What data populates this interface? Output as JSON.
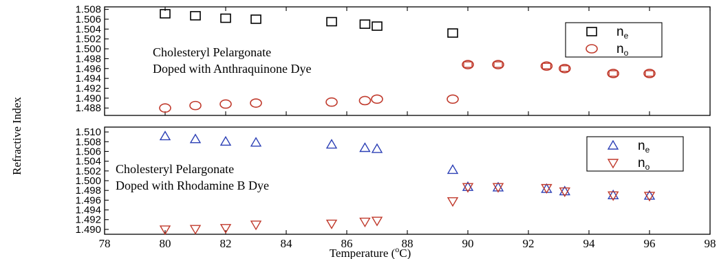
{
  "chart_data": {
    "type": "scatter",
    "xlabel_text": "Temperature (",
    "xlabel_sup": "o",
    "xlabel_unit": "C)",
    "ylabel": "Refractive Index",
    "xlim": [
      78,
      98
    ],
    "xticks": [
      "78",
      "80",
      "82",
      "84",
      "86",
      "88",
      "90",
      "92",
      "94",
      "96",
      "98"
    ],
    "panels": [
      {
        "id": "top",
        "annotation_lines": [
          "Cholesteryl Pelargonate",
          "Doped with Anthraquinone Dye"
        ],
        "ylim": [
          1.4865,
          1.5085
        ],
        "yticks": [
          "1.488",
          "1.490",
          "1.492",
          "1.494",
          "1.496",
          "1.498",
          "1.500",
          "1.502",
          "1.504",
          "1.506",
          "1.508"
        ],
        "legend_position": "top-right",
        "series": [
          {
            "label_main": "n",
            "label_sub": "e",
            "marker": "square",
            "color": "#000000",
            "x": [
              80,
              81,
              82,
              83,
              85.5,
              86.6,
              87,
              89.5
            ],
            "y": [
              1.5071,
              1.5067,
              1.5062,
              1.506,
              1.5055,
              1.505,
              1.5046,
              1.5032
            ]
          },
          {
            "label_main": "n",
            "label_sub": "o",
            "marker": "circle",
            "color": "#c0392b",
            "x": [
              80,
              81,
              82,
              83,
              85.5,
              86.6,
              87,
              89.5,
              90,
              91,
              92.6,
              93.2,
              94.8,
              96
            ],
            "y": [
              1.488,
              1.4885,
              1.4888,
              1.489,
              1.4892,
              1.4895,
              1.4898,
              1.4898,
              1.4968,
              1.4968,
              1.4965,
              1.496,
              1.495,
              1.495
            ]
          }
        ],
        "overlay_squares": {
          "x": [
            90,
            91,
            92.6,
            93.2,
            94.8,
            96
          ],
          "y": [
            1.4968,
            1.4968,
            1.4965,
            1.496,
            1.495,
            1.495
          ]
        }
      },
      {
        "id": "bottom",
        "annotation_lines": [
          "Cholesteryl Pelargonate",
          "Doped with Rhodamine B Dye"
        ],
        "ylim": [
          1.489,
          1.511
        ],
        "yticks": [
          "1.490",
          "1.492",
          "1.494",
          "1.496",
          "1.498",
          "1.500",
          "1.502",
          "1.504",
          "1.506",
          "1.508",
          "1.510"
        ],
        "legend_position": "top-right",
        "series": [
          {
            "label_main": "n",
            "label_sub": "e",
            "marker": "triangle-up",
            "color": "#2b3fb5",
            "x": [
              80,
              81,
              82,
              83,
              85.5,
              86.6,
              87,
              89.5,
              90,
              91,
              92.6,
              93.2,
              94.8,
              96
            ],
            "y": [
              1.5091,
              1.5085,
              1.508,
              1.5078,
              1.5074,
              1.5067,
              1.5065,
              1.5022,
              1.4987,
              1.4986,
              1.4983,
              1.4978,
              1.497,
              1.4969
            ]
          },
          {
            "label_main": "n",
            "label_sub": "o",
            "marker": "triangle-down",
            "color": "#c0392b",
            "x": [
              80,
              81,
              82,
              83,
              85.5,
              86.6,
              87,
              89.5,
              90,
              91,
              92.6,
              93.2,
              94.8,
              96
            ],
            "y": [
              1.49,
              1.4901,
              1.4903,
              1.491,
              1.4912,
              1.4916,
              1.4918,
              1.4958,
              1.4987,
              1.4987,
              1.4985,
              1.4978,
              1.497,
              1.4969
            ]
          }
        ]
      }
    ]
  }
}
